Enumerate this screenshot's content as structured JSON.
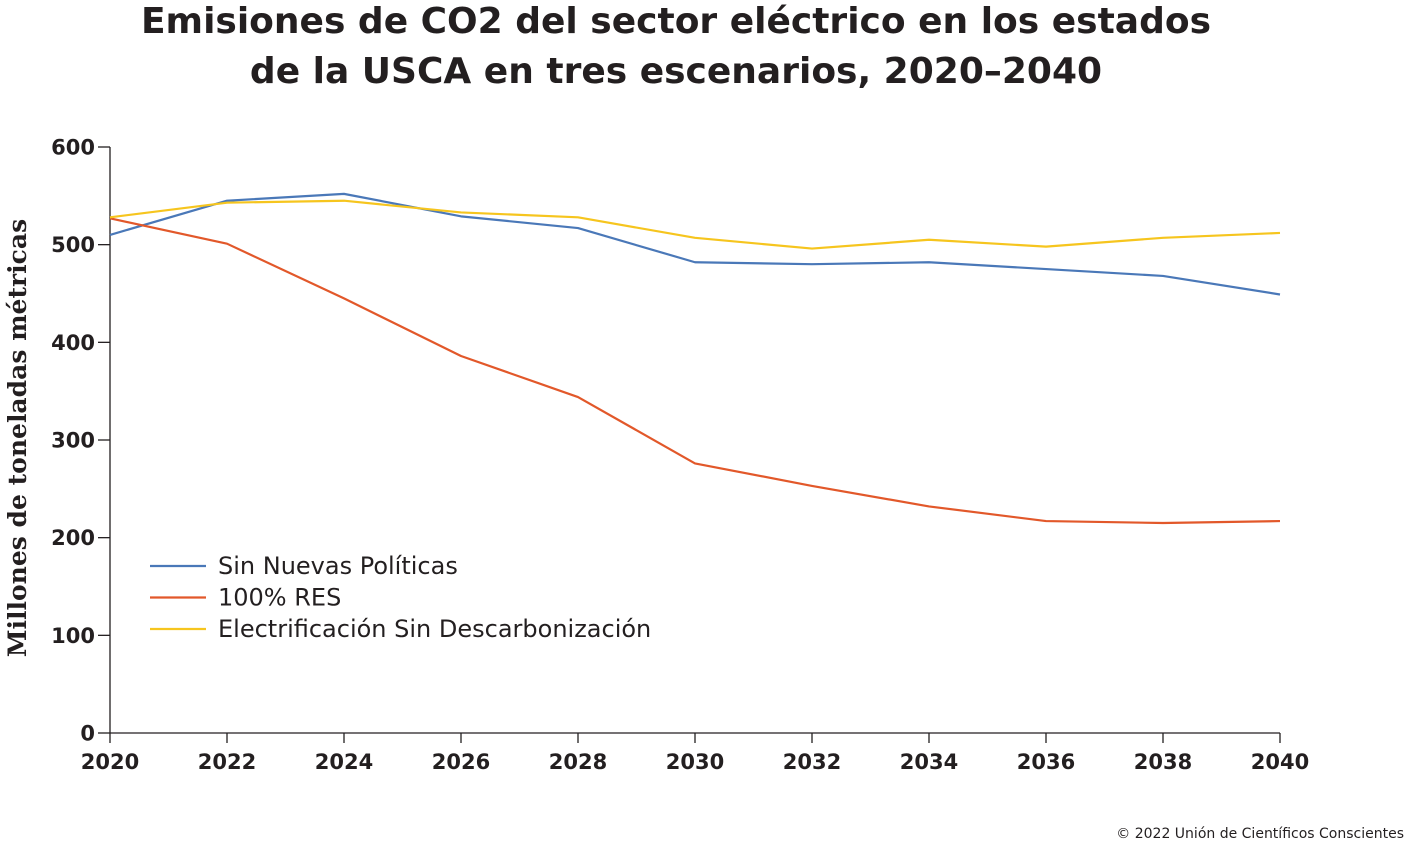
{
  "title_lines": [
    "Emisiones de CO2 del sector eléctrico en los estados",
    "de la USCA en tres escenarios, 2020–2040"
  ],
  "credit": "© 2022 Unión de Científicos Conscientes",
  "chart_data": {
    "type": "line",
    "title": "Emisiones de CO2 del sector eléctrico en los estados de la USCA en tres escenarios, 2020–2040",
    "xlabel": "",
    "ylabel": "Millones de toneladas métricas",
    "x": [
      2020,
      2022,
      2024,
      2026,
      2028,
      2030,
      2032,
      2034,
      2036,
      2038,
      2040
    ],
    "x_ticks": [
      "2020",
      "2022",
      "2024",
      "2026",
      "2028",
      "2030",
      "2032",
      "2034",
      "2036",
      "2038",
      "2040"
    ],
    "y_ticks": [
      "0",
      "100",
      "200",
      "300",
      "400",
      "500",
      "600"
    ],
    "xlim": [
      2020,
      2040
    ],
    "ylim": [
      0,
      600
    ],
    "grid": false,
    "legend_position": "left",
    "series": [
      {
        "name": "Sin Nuevas Políticas",
        "color": "#4a78b8",
        "values": [
          510,
          545,
          552,
          529,
          517,
          482,
          480,
          482,
          475,
          468,
          449
        ]
      },
      {
        "name": "100% RES",
        "color": "#e2582a",
        "values": [
          527,
          501,
          445,
          386,
          344,
          276,
          253,
          232,
          217,
          215,
          217
        ]
      },
      {
        "name": "Electrificación Sin Descarbonización",
        "color": "#f6c51e",
        "values": [
          528,
          543,
          545,
          533,
          528,
          507,
          496,
          505,
          498,
          507,
          512
        ]
      }
    ]
  }
}
